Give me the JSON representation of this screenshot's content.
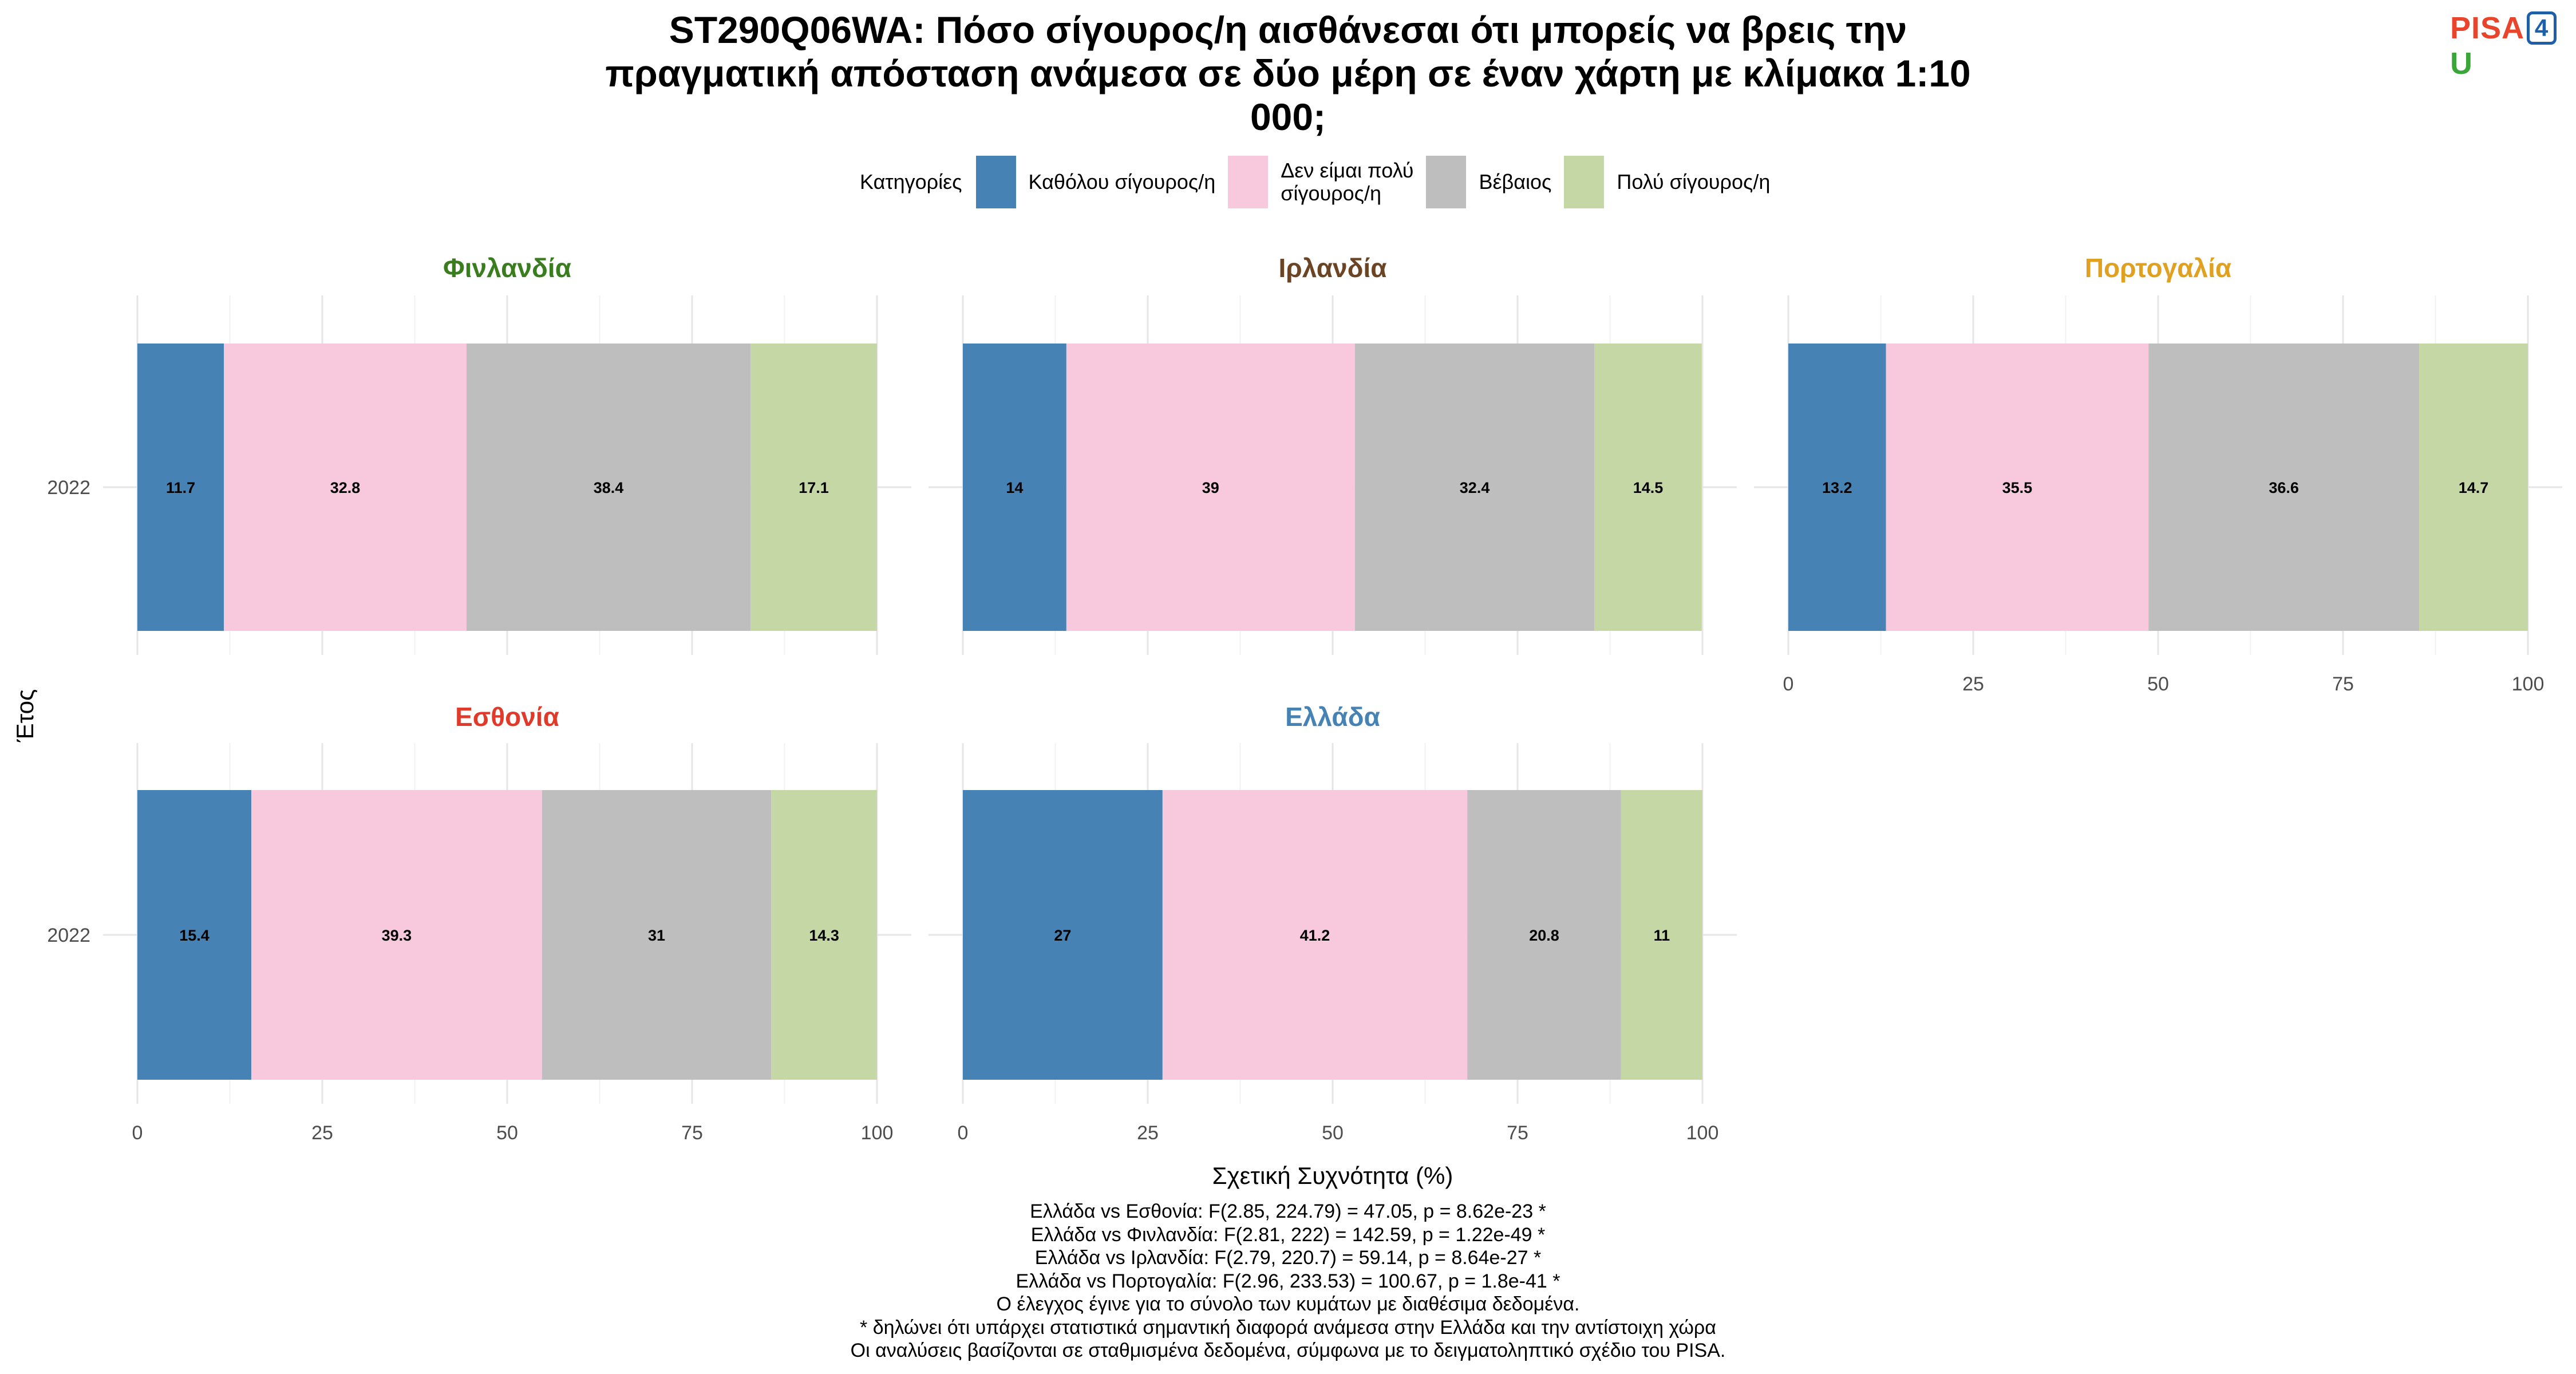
{
  "title": "ST290Q06WA: Πόσο σίγουρος/η αισθάνεσαι ότι μπορείς να βρεις την πραγματική απόσταση ανάμεσα σε δύο μέρη σε έναν χάρτη με κλίμακα 1:10 000;",
  "title_lines": [
    "ST290Q06WA: Πόσο σίγουρος/η αισθάνεσαι ότι μπορείς να βρεις την",
    "πραγματική απόσταση ανάμεσα σε δύο μέρη σε έναν χάρτη με κλίμακα 1:10",
    "000;"
  ],
  "logo": {
    "part1": "PISA",
    "part2": "4",
    "part3": "U"
  },
  "chart_data": {
    "type": "bar",
    "orientation": "horizontal-stacked",
    "xlabel": "Σχετική Συχνότητα (%)",
    "ylabel": "Έτος",
    "xlim": [
      0,
      100
    ],
    "xticks": [
      0,
      25,
      50,
      75,
      100
    ],
    "legend": {
      "title": "Κατηγορίες",
      "placement": "top",
      "entries": [
        {
          "label": "Καθόλου σίγουρος/η",
          "color": "#4682b4"
        },
        {
          "label": "Δεν είμαι πολύ\nσίγουρος/η",
          "color": "#f8c8dc"
        },
        {
          "label": "Βέβαιος",
          "color": "#bebebe"
        },
        {
          "label": "Πολύ σίγουρος/η",
          "color": "#c4d7a4"
        }
      ]
    },
    "panels": [
      {
        "name": "Φινλανδία",
        "color": "#3a7d1e",
        "category": "2022",
        "values": [
          11.7,
          32.8,
          38.4,
          17.1
        ],
        "labels": [
          "11.7",
          "32.8",
          "38.4",
          "17.1"
        ]
      },
      {
        "name": "Ιρλανδία",
        "color": "#6b4423",
        "category": "2022",
        "values": [
          14,
          39,
          32.4,
          14.5
        ],
        "labels": [
          "14",
          "39",
          "32.4",
          "14.5"
        ]
      },
      {
        "name": "Πορτογαλία",
        "color": "#e0a020",
        "category": "2022",
        "values": [
          13.2,
          35.5,
          36.6,
          14.7
        ],
        "labels": [
          "13.2",
          "35.5",
          "36.6",
          "14.7"
        ]
      },
      {
        "name": "Εσθονία",
        "color": "#e03a2a",
        "category": "2022",
        "values": [
          15.4,
          39.3,
          31,
          14.3
        ],
        "labels": [
          "15.4",
          "39.3",
          "31",
          "14.3"
        ]
      },
      {
        "name": "Ελλάδα",
        "color": "#4682b4",
        "category": "2022",
        "values": [
          27,
          41.2,
          20.8,
          11
        ],
        "labels": [
          "27",
          "41.2",
          "20.8",
          "11"
        ]
      }
    ]
  },
  "footer_lines": [
    "Ελλάδα vs Εσθονία: F(2.85, 224.79) = 47.05, p = 8.62e-23 *",
    "Ελλάδα vs Φινλανδία: F(2.81, 222) = 142.59, p = 1.22e-49 *",
    "Ελλάδα vs Ιρλανδία: F(2.79, 220.7) = 59.14, p = 8.64e-27 *",
    "Ελλάδα vs Πορτογαλία: F(2.96, 233.53) = 100.67, p = 1.8e-41 *",
    "Ο έλεγχος έγινε για το σύνολο των κυμάτων με διαθέσιμα δεδομένα.",
    "* δηλώνει ότι υπάρχει στατιστικά σημαντική διαφορά ανάμεσα στην Ελλάδα και την αντίστοιχη χώρα",
    "Οι αναλύσεις βασίζονται σε σταθμισμένα δεδομένα, σύμφωνα με το δειγματοληπτικό σχέδιο του PISA."
  ]
}
